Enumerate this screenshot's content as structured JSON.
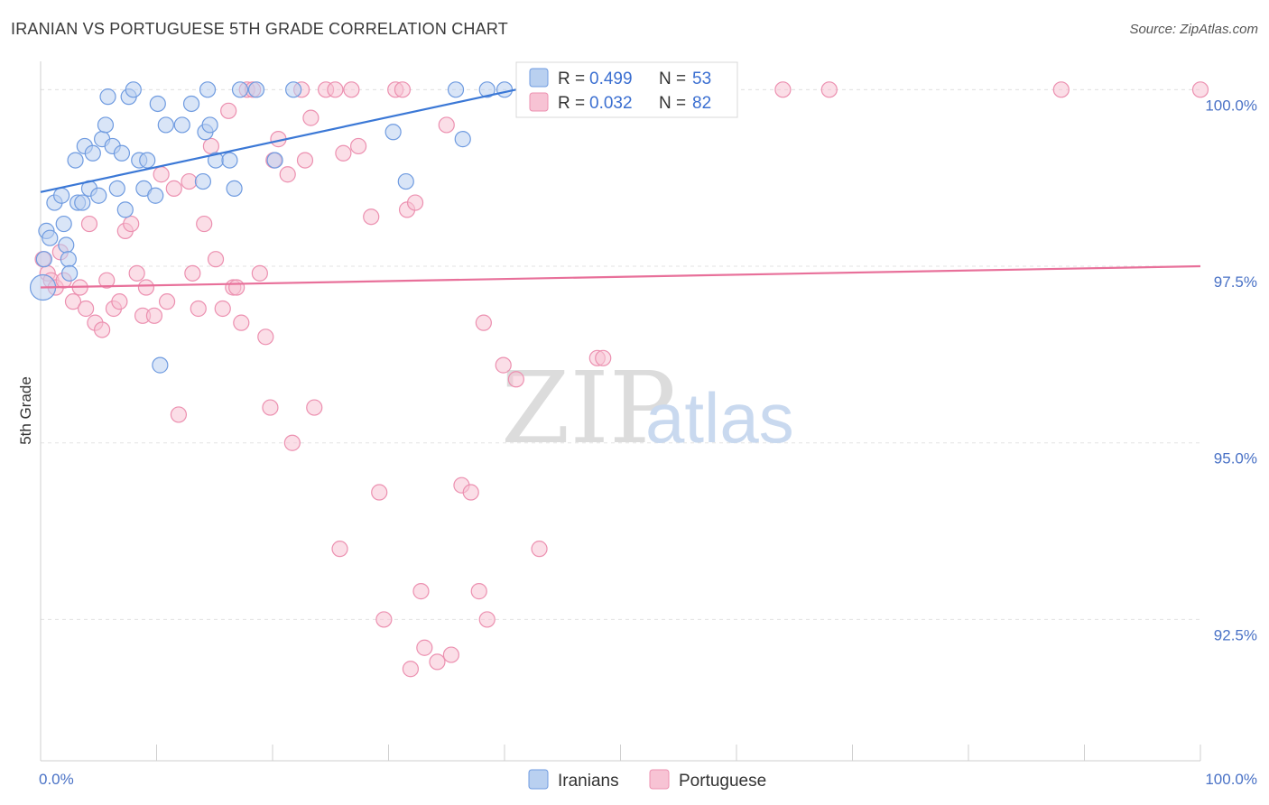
{
  "title": "IRANIAN VS PORTUGUESE 5TH GRADE CORRELATION CHART",
  "source": "Source: ZipAtlas.com",
  "watermark": {
    "zip": "ZIP",
    "atlas": "atlas"
  },
  "colors": {
    "iranians": "#3b78d6",
    "portuguese": "#e8709a",
    "iranians_fill": "#b9d0f0",
    "portuguese_fill": "#f7c3d4"
  },
  "legend": {
    "iranians": {
      "r_label": "R = ",
      "r_value": "0.499",
      "n_label": "N = ",
      "n_value": "53"
    },
    "portuguese": {
      "r_label": "R = ",
      "r_value": "0.032",
      "n_label": "N = ",
      "n_value": "82"
    }
  },
  "chart_data": {
    "type": "scatter",
    "ylabel": "5th Grade",
    "xlim": [
      0,
      100
    ],
    "ylim": [
      90.5,
      100.4
    ],
    "x_tick_labels": [
      "0.0%",
      "100.0%"
    ],
    "y_ticks": [
      {
        "value": 100.0,
        "label": "100.0%"
      },
      {
        "value": 97.5,
        "label": "97.5%"
      },
      {
        "value": 95.0,
        "label": "95.0%"
      },
      {
        "value": 92.5,
        "label": "92.5%"
      }
    ],
    "grid": true,
    "legend_position": "top-center",
    "series": [
      {
        "name": "Iranians",
        "trend": {
          "x0": 0,
          "y0": 98.55,
          "x1": 41,
          "y1": 100.0
        },
        "points": [
          [
            0.2,
            97.2
          ],
          [
            0.5,
            98.0
          ],
          [
            0.8,
            97.9
          ],
          [
            0.3,
            97.6
          ],
          [
            1.2,
            98.4
          ],
          [
            1.8,
            98.5
          ],
          [
            2.0,
            98.1
          ],
          [
            2.2,
            97.8
          ],
          [
            2.4,
            97.6
          ],
          [
            2.5,
            97.4
          ],
          [
            3.0,
            99.0
          ],
          [
            3.2,
            98.4
          ],
          [
            3.6,
            98.4
          ],
          [
            3.8,
            99.2
          ],
          [
            4.2,
            98.6
          ],
          [
            4.5,
            99.1
          ],
          [
            5.0,
            98.5
          ],
          [
            5.3,
            99.3
          ],
          [
            5.6,
            99.5
          ],
          [
            5.8,
            99.9
          ],
          [
            6.2,
            99.2
          ],
          [
            6.6,
            98.6
          ],
          [
            7.0,
            99.1
          ],
          [
            7.3,
            98.3
          ],
          [
            7.6,
            99.9
          ],
          [
            8.0,
            100.0
          ],
          [
            8.5,
            99.0
          ],
          [
            8.9,
            98.6
          ],
          [
            9.2,
            99.0
          ],
          [
            9.9,
            98.5
          ],
          [
            10.1,
            99.8
          ],
          [
            10.3,
            96.1
          ],
          [
            10.8,
            99.5
          ],
          [
            12.2,
            99.5
          ],
          [
            13.0,
            99.8
          ],
          [
            14.0,
            98.7
          ],
          [
            14.2,
            99.4
          ],
          [
            14.4,
            100.0
          ],
          [
            14.6,
            99.5
          ],
          [
            15.1,
            99.0
          ],
          [
            16.3,
            99.0
          ],
          [
            16.7,
            98.6
          ],
          [
            17.2,
            100.0
          ],
          [
            18.6,
            100.0
          ],
          [
            20.2,
            99.0
          ],
          [
            21.8,
            100.0
          ],
          [
            30.4,
            99.4
          ],
          [
            31.5,
            98.7
          ],
          [
            35.8,
            100.0
          ],
          [
            36.4,
            99.3
          ],
          [
            38.5,
            100.0
          ],
          [
            40.0,
            100.0
          ],
          [
            45.5,
            100.0
          ]
        ]
      },
      {
        "name": "Portuguese",
        "trend": {
          "x0": 0,
          "y0": 97.2,
          "x1": 100,
          "y1": 97.5
        },
        "points": [
          [
            0.2,
            97.6
          ],
          [
            0.6,
            97.4
          ],
          [
            0.9,
            97.3
          ],
          [
            1.3,
            97.2
          ],
          [
            1.7,
            97.7
          ],
          [
            2.0,
            97.3
          ],
          [
            2.8,
            97.0
          ],
          [
            3.4,
            97.2
          ],
          [
            3.9,
            96.9
          ],
          [
            4.2,
            98.1
          ],
          [
            4.7,
            96.7
          ],
          [
            5.3,
            96.6
          ],
          [
            5.7,
            97.3
          ],
          [
            6.3,
            96.9
          ],
          [
            6.8,
            97.0
          ],
          [
            7.3,
            98.0
          ],
          [
            7.8,
            98.1
          ],
          [
            8.3,
            97.4
          ],
          [
            8.8,
            96.8
          ],
          [
            9.1,
            97.2
          ],
          [
            9.8,
            96.8
          ],
          [
            10.4,
            98.8
          ],
          [
            10.9,
            97.0
          ],
          [
            11.5,
            98.6
          ],
          [
            11.9,
            95.4
          ],
          [
            12.8,
            98.7
          ],
          [
            13.1,
            97.4
          ],
          [
            13.6,
            96.9
          ],
          [
            14.1,
            98.1
          ],
          [
            14.7,
            99.2
          ],
          [
            15.1,
            97.6
          ],
          [
            15.7,
            96.9
          ],
          [
            16.2,
            99.7
          ],
          [
            16.6,
            97.2
          ],
          [
            16.9,
            97.2
          ],
          [
            17.3,
            96.7
          ],
          [
            17.8,
            100.0
          ],
          [
            18.3,
            100.0
          ],
          [
            18.9,
            97.4
          ],
          [
            19.4,
            96.5
          ],
          [
            19.8,
            95.5
          ],
          [
            20.1,
            99.0
          ],
          [
            20.5,
            99.3
          ],
          [
            21.3,
            98.8
          ],
          [
            21.7,
            95.0
          ],
          [
            22.5,
            100.0
          ],
          [
            22.8,
            99.0
          ],
          [
            23.3,
            99.6
          ],
          [
            23.6,
            95.5
          ],
          [
            24.6,
            100.0
          ],
          [
            25.4,
            100.0
          ],
          [
            25.8,
            93.5
          ],
          [
            26.1,
            99.1
          ],
          [
            26.8,
            100.0
          ],
          [
            27.4,
            99.2
          ],
          [
            28.5,
            98.2
          ],
          [
            29.2,
            94.3
          ],
          [
            29.6,
            92.5
          ],
          [
            30.6,
            100.0
          ],
          [
            31.2,
            100.0
          ],
          [
            31.6,
            98.3
          ],
          [
            31.9,
            91.8
          ],
          [
            32.3,
            98.4
          ],
          [
            32.8,
            92.9
          ],
          [
            33.1,
            92.1
          ],
          [
            34.2,
            91.9
          ],
          [
            35.0,
            99.5
          ],
          [
            35.4,
            92.0
          ],
          [
            36.3,
            94.4
          ],
          [
            37.1,
            94.3
          ],
          [
            37.8,
            92.9
          ],
          [
            38.2,
            96.7
          ],
          [
            38.5,
            92.5
          ],
          [
            39.9,
            96.1
          ],
          [
            41.0,
            95.9
          ],
          [
            43.0,
            93.5
          ],
          [
            48.0,
            96.2
          ],
          [
            48.5,
            96.2
          ],
          [
            64.0,
            100.0
          ],
          [
            68.0,
            100.0
          ],
          [
            88.0,
            100.0
          ],
          [
            100.0,
            100.0
          ]
        ]
      }
    ]
  }
}
